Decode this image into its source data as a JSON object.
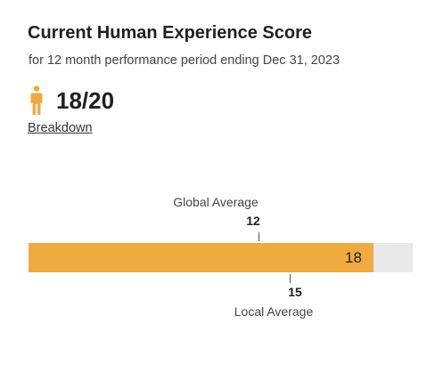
{
  "header": {
    "title": "Current Human Experience Score",
    "subtitle": "for 12 month performance period ending Dec 31, 2023"
  },
  "score": {
    "icon": "person-icon",
    "icon_color": "#F0AB40",
    "text": "18/20",
    "breakdown_link": "Breakdown"
  },
  "chart_data": {
    "type": "bar",
    "bar_color": "#F0AB40",
    "track_color": "#E9E9E9",
    "value": 18,
    "value_label": "18",
    "max": 20,
    "global_average": {
      "label": "Global Average",
      "value": 12,
      "value_label": "12"
    },
    "local_average": {
      "label": "Local Average",
      "value": 15,
      "value_label": "15"
    }
  }
}
